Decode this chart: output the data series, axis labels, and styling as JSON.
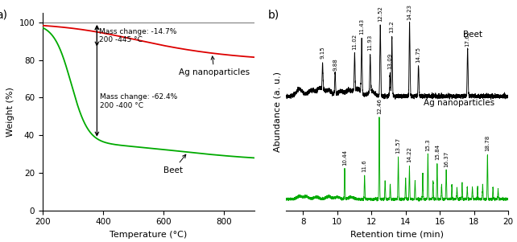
{
  "panel_a": {
    "xlabel": "Temperature (°C)",
    "ylabel": "Weight (%)",
    "xlim": [
      200,
      900
    ],
    "ylim": [
      0,
      105
    ],
    "yticks": [
      0,
      20,
      40,
      60,
      80,
      100
    ],
    "xticks": [
      200,
      400,
      600,
      800
    ],
    "ag_label": "Ag nanoparticles",
    "beet_label": "Beet",
    "ag_color": "#dd0000",
    "beet_color": "#00aa00",
    "ref_color": "#888888"
  },
  "panel_b": {
    "xlabel": "Retention time (min)",
    "ylabel": "Abundance (a. u.)",
    "xlim": [
      7,
      20
    ],
    "xticks": [
      8,
      10,
      12,
      14,
      16,
      18,
      20
    ],
    "beet_peaks": [
      9.15,
      9.88,
      11.02,
      11.43,
      11.93,
      12.52,
      13.09,
      13.2,
      14.23,
      14.75,
      17.62
    ],
    "ag_peaks": [
      10.44,
      11.6,
      12.46,
      13.57,
      14.22,
      15.3,
      15.84,
      16.37,
      18.78
    ],
    "beet_label": "Beet",
    "ag_label": "Ag nanoparticles",
    "beet_color": "#000000",
    "ag_color": "#00aa00"
  }
}
